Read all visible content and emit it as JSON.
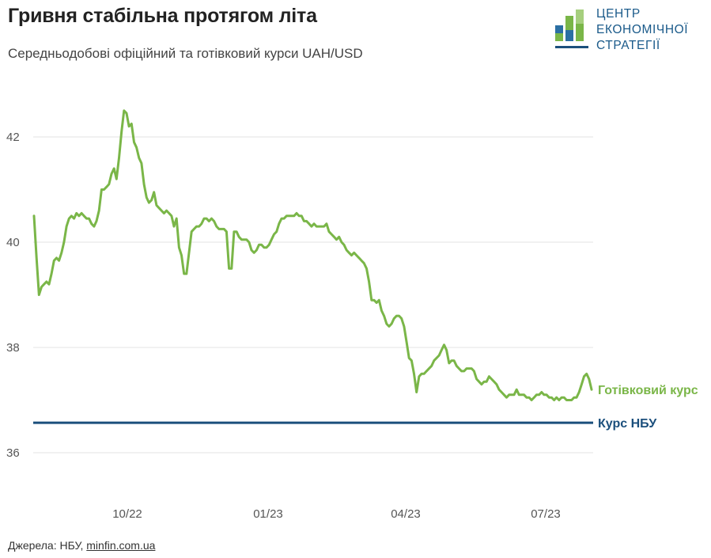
{
  "title": "Гривня стабільна протягом літа",
  "subtitle": "Середньодобові офіційний та готівковий курси UAH/USD",
  "logo": {
    "lines": [
      "ЦЕНТР",
      "ЕКОНОМІЧНОЇ",
      "СТРАТЕГІЇ"
    ],
    "icon": "bar-logo-icon"
  },
  "source": {
    "prefix": "Джерела: НБУ, ",
    "link": "minfin.com.ua"
  },
  "colors": {
    "cash": "#7ab648",
    "nbu": "#1b4f7c",
    "grid": "#e3e3e3"
  },
  "chart_data": {
    "type": "line",
    "title": "Гривня стабільна протягом літа",
    "subtitle": "Середньодобові офіційний та готівковий курси UAH/USD",
    "xlabel": "",
    "ylabel": "",
    "x_tick_labels": [
      "10/22",
      "01/23",
      "04/23",
      "07/23"
    ],
    "y_ticks": [
      36,
      38,
      40,
      42
    ],
    "ylim": [
      35,
      43
    ],
    "grid": true,
    "legend": "inline labels at right end of lines",
    "series": [
      {
        "name": "Готівковий курс",
        "color": "#7ab648",
        "values": [
          40.5,
          39.7,
          39.0,
          39.15,
          39.2,
          39.25,
          39.2,
          39.4,
          39.65,
          39.7,
          39.65,
          39.8,
          40.0,
          40.3,
          40.45,
          40.5,
          40.45,
          40.55,
          40.5,
          40.55,
          40.5,
          40.45,
          40.45,
          40.35,
          40.3,
          40.4,
          40.6,
          41.0,
          41.0,
          41.05,
          41.1,
          41.3,
          41.4,
          41.2,
          41.6,
          42.1,
          42.5,
          42.45,
          42.2,
          42.25,
          41.9,
          41.8,
          41.6,
          41.5,
          41.1,
          40.85,
          40.75,
          40.8,
          40.95,
          40.7,
          40.65,
          40.6,
          40.55,
          40.6,
          40.55,
          40.5,
          40.3,
          40.45,
          39.9,
          39.75,
          39.4,
          39.4,
          39.8,
          40.2,
          40.25,
          40.3,
          40.3,
          40.35,
          40.45,
          40.45,
          40.4,
          40.45,
          40.4,
          40.3,
          40.25,
          40.25,
          40.25,
          40.2,
          39.5,
          39.5,
          40.2,
          40.2,
          40.1,
          40.05,
          40.05,
          40.05,
          40.0,
          39.85,
          39.8,
          39.85,
          39.95,
          39.95,
          39.9,
          39.9,
          39.95,
          40.05,
          40.15,
          40.2,
          40.35,
          40.45,
          40.45,
          40.5,
          40.5,
          40.5,
          40.5,
          40.55,
          40.5,
          40.5,
          40.4,
          40.4,
          40.35,
          40.3,
          40.35,
          40.3,
          40.3,
          40.3,
          40.3,
          40.35,
          40.2,
          40.15,
          40.1,
          40.05,
          40.1,
          40.0,
          39.95,
          39.85,
          39.8,
          39.75,
          39.8,
          39.75,
          39.7,
          39.65,
          39.6,
          39.5,
          39.25,
          38.9,
          38.9,
          38.85,
          38.9,
          38.7,
          38.6,
          38.45,
          38.4,
          38.45,
          38.55,
          38.6,
          38.6,
          38.55,
          38.4,
          38.1,
          37.8,
          37.75,
          37.5,
          37.15,
          37.45,
          37.5,
          37.5,
          37.55,
          37.6,
          37.65,
          37.75,
          37.8,
          37.85,
          37.95,
          38.05,
          37.95,
          37.7,
          37.75,
          37.75,
          37.65,
          37.6,
          37.55,
          37.55,
          37.6,
          37.6,
          37.6,
          37.55,
          37.4,
          37.35,
          37.3,
          37.35,
          37.35,
          37.45,
          37.4,
          37.35,
          37.3,
          37.2,
          37.15,
          37.1,
          37.05,
          37.1,
          37.1,
          37.1,
          37.2,
          37.1,
          37.1,
          37.1,
          37.05,
          37.05,
          37.0,
          37.05,
          37.1,
          37.1,
          37.15,
          37.1,
          37.1,
          37.05,
          37.05,
          37.0,
          37.05,
          37.0,
          37.05,
          37.05,
          37.0,
          37.0,
          37.0,
          37.05,
          37.05,
          37.15,
          37.3,
          37.45,
          37.5,
          37.4,
          37.2
        ],
        "label": "Готівковий курс"
      },
      {
        "name": "Курс НБУ",
        "color": "#1b4f7c",
        "values": [
          36.57,
          36.57
        ],
        "label": "Курс НБУ"
      }
    ]
  }
}
